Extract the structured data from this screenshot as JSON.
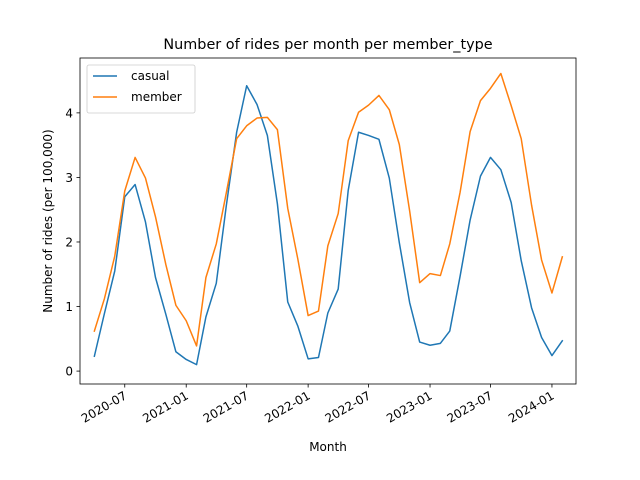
{
  "chart_data": {
    "type": "line",
    "title": "Number of rides per month per member_type",
    "xlabel": "Month",
    "ylabel": "Number of rides (per 100,000)",
    "x": [
      "2020-04",
      "2020-05",
      "2020-06",
      "2020-07",
      "2020-08",
      "2020-09",
      "2020-10",
      "2020-11",
      "2020-12",
      "2021-01",
      "2021-02",
      "2021-03",
      "2021-04",
      "2021-05",
      "2021-06",
      "2021-07",
      "2021-08",
      "2021-09",
      "2021-10",
      "2021-11",
      "2021-12",
      "2022-01",
      "2022-02",
      "2022-03",
      "2022-04",
      "2022-05",
      "2022-06",
      "2022-07",
      "2022-08",
      "2022-09",
      "2022-10",
      "2022-11",
      "2022-12",
      "2023-01",
      "2023-02",
      "2023-03",
      "2023-04",
      "2023-05",
      "2023-06",
      "2023-07",
      "2023-08",
      "2023-09",
      "2023-10",
      "2023-11",
      "2023-12",
      "2024-01",
      "2024-02"
    ],
    "xlim": [
      "2020-02-18",
      "2024-03-13"
    ],
    "ylim": [
      -0.2,
      4.85
    ],
    "x_ticks": [
      "2020-07-01",
      "2021-01-01",
      "2021-07-01",
      "2022-01-01",
      "2022-07-01",
      "2023-01-01",
      "2023-07-01",
      "2024-01-01"
    ],
    "x_tick_labels": [
      "2020-07",
      "2021-01",
      "2021-07",
      "2022-01",
      "2022-07",
      "2023-01",
      "2023-07",
      "2024-01"
    ],
    "y_ticks": [
      0,
      1,
      2,
      3,
      4
    ],
    "y_tick_labels": [
      "0",
      "1",
      "2",
      "3",
      "4"
    ],
    "grid": false,
    "legend": "top-left",
    "series": [
      {
        "name": "casual",
        "color": "#1f77b4",
        "values": [
          0.23,
          0.89,
          1.55,
          2.7,
          2.89,
          2.31,
          1.45,
          0.88,
          0.3,
          0.18,
          0.1,
          0.84,
          1.36,
          2.56,
          3.7,
          4.42,
          4.13,
          3.65,
          2.59,
          1.07,
          0.7,
          0.19,
          0.21,
          0.9,
          1.27,
          2.8,
          3.7,
          3.65,
          3.59,
          2.99,
          1.99,
          1.06,
          0.45,
          0.4,
          0.43,
          0.62,
          1.47,
          2.34,
          3.02,
          3.31,
          3.12,
          2.61,
          1.71,
          0.98,
          0.52,
          0.24,
          0.47
        ]
      },
      {
        "name": "member",
        "color": "#ff7f0e",
        "values": [
          0.62,
          1.12,
          1.78,
          2.79,
          3.31,
          2.99,
          2.39,
          1.65,
          1.02,
          0.78,
          0.39,
          1.45,
          1.97,
          2.76,
          3.6,
          3.8,
          3.92,
          3.93,
          3.74,
          2.52,
          1.74,
          0.86,
          0.93,
          1.94,
          2.44,
          3.57,
          4.01,
          4.12,
          4.27,
          4.05,
          3.51,
          2.48,
          1.37,
          1.51,
          1.48,
          1.97,
          2.77,
          3.71,
          4.19,
          4.38,
          4.61,
          4.11,
          3.6,
          2.57,
          1.72,
          1.21,
          1.77
        ]
      }
    ]
  }
}
